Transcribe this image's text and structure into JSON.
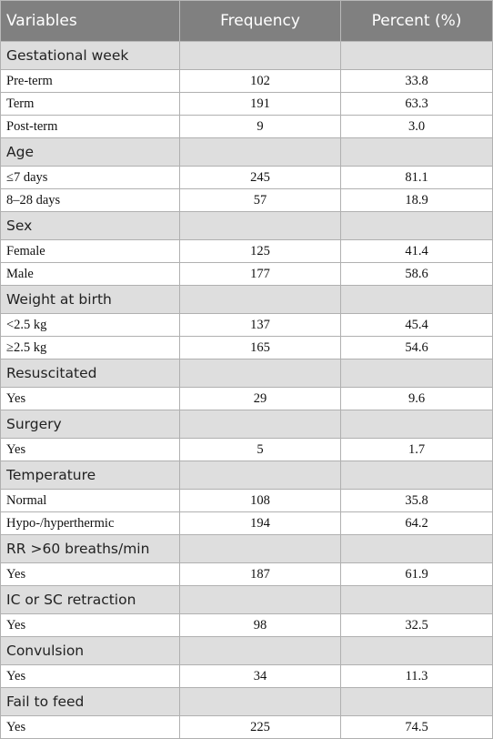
{
  "table": {
    "headers": [
      "Variables",
      "Frequency",
      "Percent (%)"
    ],
    "groups": [
      {
        "label": "Gestational week",
        "rows": [
          {
            "variable": "Pre-term",
            "frequency": "102",
            "percent": "33.8"
          },
          {
            "variable": "Term",
            "frequency": "191",
            "percent": "63.3"
          },
          {
            "variable": "Post-term",
            "frequency": "9",
            "percent": "3.0"
          }
        ]
      },
      {
        "label": "Age",
        "rows": [
          {
            "variable": "≤7 days",
            "frequency": "245",
            "percent": "81.1"
          },
          {
            "variable": "8–28 days",
            "frequency": "57",
            "percent": "18.9"
          }
        ]
      },
      {
        "label": "Sex",
        "rows": [
          {
            "variable": "Female",
            "frequency": "125",
            "percent": "41.4"
          },
          {
            "variable": "Male",
            "frequency": "177",
            "percent": "58.6"
          }
        ]
      },
      {
        "label": "Weight at birth",
        "rows": [
          {
            "variable": "<2.5 kg",
            "frequency": "137",
            "percent": "45.4"
          },
          {
            "variable": "≥2.5 kg",
            "frequency": "165",
            "percent": "54.6"
          }
        ]
      },
      {
        "label": "Resuscitated",
        "rows": [
          {
            "variable": "Yes",
            "frequency": "29",
            "percent": "9.6"
          }
        ]
      },
      {
        "label": "Surgery",
        "rows": [
          {
            "variable": "Yes",
            "frequency": "5",
            "percent": "1.7"
          }
        ]
      },
      {
        "label": "Temperature",
        "rows": [
          {
            "variable": "Normal",
            "frequency": "108",
            "percent": "35.8"
          },
          {
            "variable": "Hypo-/hyperthermic",
            "frequency": "194",
            "percent": "64.2"
          }
        ]
      },
      {
        "label": "RR >60 breaths/min",
        "rows": [
          {
            "variable": "Yes",
            "frequency": "187",
            "percent": "61.9"
          }
        ]
      },
      {
        "label": "IC or SC retraction",
        "rows": [
          {
            "variable": "Yes",
            "frequency": "98",
            "percent": "32.5"
          }
        ]
      },
      {
        "label": "Convulsion",
        "rows": [
          {
            "variable": "Yes",
            "frequency": "34",
            "percent": "11.3"
          }
        ]
      },
      {
        "label": "Fail to feed",
        "rows": [
          {
            "variable": "Yes",
            "frequency": "225",
            "percent": "74.5"
          }
        ]
      }
    ]
  }
}
